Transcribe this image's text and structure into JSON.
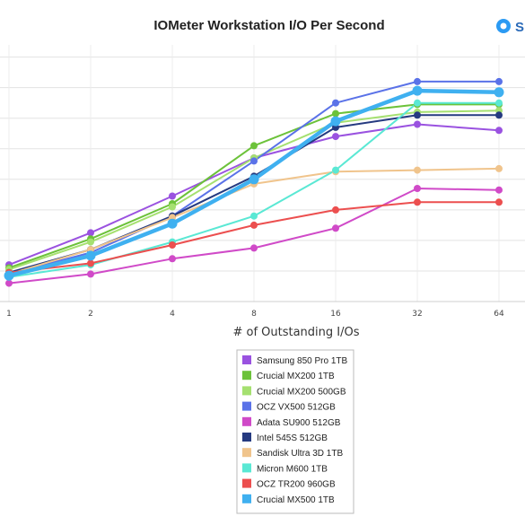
{
  "brand": {
    "text": "S",
    "icon": "brand-logo-icon",
    "color": "#2b9af3"
  },
  "chart_data": {
    "type": "line",
    "title": "IOMeter Workstation I/O Per Second",
    "xlabel": "# of Outstanding I/Os",
    "ylabel": "",
    "categories": [
      "1",
      "2",
      "4",
      "8",
      "16",
      "32",
      "64"
    ],
    "ylim": [
      0,
      84
    ],
    "y_gridlines": [
      10,
      20,
      30,
      40,
      50,
      60,
      70,
      80
    ],
    "grid": true,
    "legend_placement": "bottom-center",
    "series": [
      {
        "name": "Samsung 850 Pro 1TB",
        "color": "#9a52e0",
        "values": [
          12,
          22.5,
          34.5,
          47,
          54,
          58,
          56
        ]
      },
      {
        "name": "Crucial MX200 1TB",
        "color": "#6cc23a",
        "values": [
          11,
          20.5,
          32,
          51,
          61.5,
          64.5,
          64.5
        ]
      },
      {
        "name": "Crucial MX200 500GB",
        "color": "#a5e070",
        "values": [
          10.5,
          19.5,
          31,
          47,
          58.5,
          62,
          62.5
        ]
      },
      {
        "name": "OCZ VX500 512GB",
        "color": "#5a72e8",
        "values": [
          9,
          16,
          28,
          46,
          65,
          72,
          72
        ]
      },
      {
        "name": "Adata SU900 512GB",
        "color": "#d04ac8",
        "values": [
          6,
          9,
          14,
          17.5,
          24,
          37,
          36.5
        ]
      },
      {
        "name": "Intel 545S 512GB",
        "color": "#253a80",
        "values": [
          9.5,
          17,
          28,
          41,
          57,
          61,
          61
        ]
      },
      {
        "name": "Sandisk Ultra 3D 1TB",
        "color": "#f0c48c",
        "values": [
          9,
          17,
          27.5,
          38.5,
          42.5,
          43,
          43.5
        ]
      },
      {
        "name": "Micron M600 1TB",
        "color": "#5ae8d4",
        "values": [
          8,
          12,
          19.5,
          28,
          43,
          65,
          65
        ]
      },
      {
        "name": "OCZ TR200 960GB",
        "color": "#ec4f4f",
        "values": [
          9.5,
          12.5,
          18.5,
          25,
          30,
          32.5,
          32.5
        ]
      },
      {
        "name": "Crucial MX500 1TB",
        "color": "#3fb0f0",
        "values": [
          8.5,
          15,
          25.5,
          40,
          59,
          69,
          68.5
        ]
      }
    ]
  }
}
